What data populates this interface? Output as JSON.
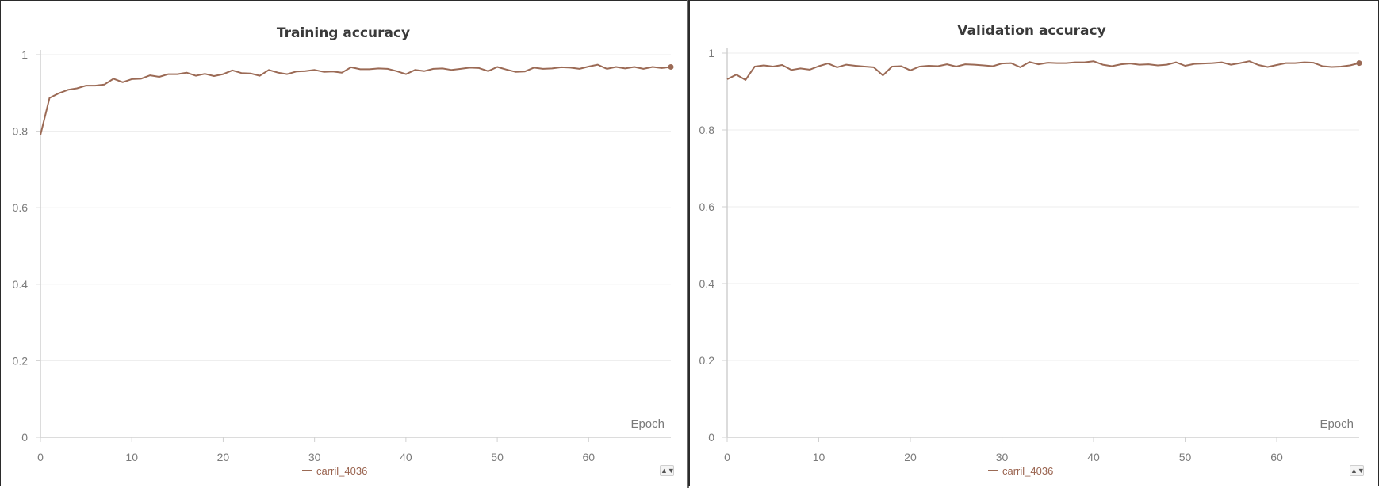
{
  "colors": {
    "series": "#9b6a55",
    "axis": "#d0d0d0",
    "grid": "#ececec",
    "text": "#7a7a7a"
  },
  "chart_data": [
    {
      "type": "line",
      "title": "Training accuracy",
      "xlabel": "Epoch",
      "ylabel": "",
      "xlim": [
        0,
        69
      ],
      "ylim": [
        0,
        1
      ],
      "xticks": [
        0,
        10,
        20,
        30,
        40,
        50,
        60
      ],
      "yticks": [
        0,
        0.2,
        0.4,
        0.6,
        0.8,
        1
      ],
      "ytick_labels": [
        "0",
        "0.2",
        "0.4",
        "0.6",
        "0.8",
        "1"
      ],
      "grid": true,
      "legend_position": "bottom-center",
      "series": [
        {
          "name": "carril_4036",
          "x": [
            0,
            1,
            2,
            3,
            4,
            5,
            6,
            7,
            8,
            9,
            10,
            11,
            12,
            13,
            14,
            15,
            16,
            17,
            18,
            19,
            20,
            21,
            22,
            23,
            24,
            25,
            26,
            27,
            28,
            29,
            30,
            31,
            32,
            33,
            34,
            35,
            36,
            37,
            38,
            39,
            40,
            41,
            42,
            43,
            44,
            45,
            46,
            47,
            48,
            49,
            50,
            51,
            52,
            53,
            54,
            55,
            56,
            57,
            58,
            59,
            60,
            61,
            62,
            63,
            64,
            65,
            66,
            67,
            68,
            69
          ],
          "y": [
            0.79,
            0.887,
            0.899,
            0.908,
            0.912,
            0.919,
            0.919,
            0.922,
            0.937,
            0.928,
            0.936,
            0.937,
            0.946,
            0.942,
            0.949,
            0.949,
            0.953,
            0.945,
            0.95,
            0.944,
            0.949,
            0.959,
            0.952,
            0.951,
            0.945,
            0.96,
            0.953,
            0.949,
            0.956,
            0.957,
            0.96,
            0.955,
            0.956,
            0.953,
            0.967,
            0.962,
            0.962,
            0.964,
            0.963,
            0.957,
            0.949,
            0.96,
            0.957,
            0.963,
            0.964,
            0.96,
            0.963,
            0.966,
            0.965,
            0.957,
            0.968,
            0.961,
            0.955,
            0.956,
            0.966,
            0.963,
            0.964,
            0.967,
            0.966,
            0.963,
            0.969,
            0.974,
            0.963,
            0.968,
            0.964,
            0.968,
            0.963,
            0.968,
            0.965,
            0.968
          ]
        }
      ]
    },
    {
      "type": "line",
      "title": "Validation accuracy",
      "xlabel": "Epoch",
      "ylabel": "",
      "xlim": [
        0,
        69
      ],
      "ylim": [
        0,
        1
      ],
      "xticks": [
        0,
        10,
        20,
        30,
        40,
        50,
        60
      ],
      "yticks": [
        0,
        0.2,
        0.4,
        0.6,
        0.8,
        1
      ],
      "ytick_labels": [
        "0",
        "0.2",
        "0.4",
        "0.6",
        "0.8",
        "1"
      ],
      "grid": true,
      "legend_position": "bottom-center",
      "series": [
        {
          "name": "carril_4036",
          "x": [
            0,
            1,
            2,
            3,
            4,
            5,
            6,
            7,
            8,
            9,
            10,
            11,
            12,
            13,
            14,
            15,
            16,
            17,
            18,
            19,
            20,
            21,
            22,
            23,
            24,
            25,
            26,
            27,
            28,
            29,
            30,
            31,
            32,
            33,
            34,
            35,
            36,
            37,
            38,
            39,
            40,
            41,
            42,
            43,
            44,
            45,
            46,
            47,
            48,
            49,
            50,
            51,
            52,
            53,
            54,
            55,
            56,
            57,
            58,
            59,
            60,
            61,
            62,
            63,
            64,
            65,
            66,
            67,
            68,
            69
          ],
          "y": [
            0.932,
            0.944,
            0.93,
            0.965,
            0.968,
            0.965,
            0.969,
            0.956,
            0.96,
            0.957,
            0.966,
            0.973,
            0.963,
            0.97,
            0.967,
            0.965,
            0.963,
            0.942,
            0.965,
            0.966,
            0.955,
            0.965,
            0.967,
            0.966,
            0.971,
            0.965,
            0.971,
            0.97,
            0.968,
            0.966,
            0.973,
            0.974,
            0.963,
            0.977,
            0.971,
            0.975,
            0.974,
            0.974,
            0.976,
            0.976,
            0.979,
            0.97,
            0.966,
            0.971,
            0.973,
            0.97,
            0.971,
            0.968,
            0.97,
            0.976,
            0.967,
            0.972,
            0.973,
            0.974,
            0.976,
            0.97,
            0.974,
            0.979,
            0.969,
            0.964,
            0.969,
            0.974,
            0.974,
            0.976,
            0.975,
            0.966,
            0.964,
            0.965,
            0.968,
            0.974
          ]
        }
      ]
    }
  ]
}
